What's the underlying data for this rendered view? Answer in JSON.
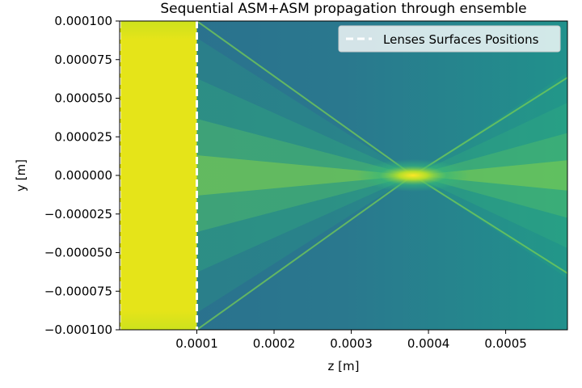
{
  "chart_data": {
    "type": "heatmap",
    "title": "Sequential ASM+ASM propagation through ensemble",
    "xlabel": "z [m]",
    "ylabel": "y [m]",
    "xlim": [
      0,
      0.00058
    ],
    "ylim": [
      -0.0001,
      0.0001
    ],
    "x_ticks": [
      {
        "value": 0.0001,
        "label": "0.0001"
      },
      {
        "value": 0.0002,
        "label": "0.0002"
      },
      {
        "value": 0.0003,
        "label": "0.0003"
      },
      {
        "value": 0.0004,
        "label": "0.0004"
      },
      {
        "value": 0.0005,
        "label": "0.0005"
      }
    ],
    "y_ticks": [
      {
        "value": 0.0001,
        "label": "0.000100"
      },
      {
        "value": 7.5e-05,
        "label": "0.000075"
      },
      {
        "value": 5e-05,
        "label": "0.000050"
      },
      {
        "value": 2.5e-05,
        "label": "0.000025"
      },
      {
        "value": 0,
        "label": "0.000000"
      },
      {
        "value": -2.5e-05,
        "label": "−0.000025"
      },
      {
        "value": -5e-05,
        "label": "−0.000050"
      },
      {
        "value": -7.5e-05,
        "label": "−0.000075"
      },
      {
        "value": -0.0001,
        "label": "−0.000100"
      }
    ],
    "colormap": "viridis",
    "lens_surface_positions": [
      0,
      0.0001
    ],
    "focus": {
      "z": 0.00038,
      "y": 0
    },
    "legend": {
      "placement": "top-right",
      "entries": [
        {
          "label": "Lenses Surfaces Positions",
          "style": "dashed",
          "color": "#ffffff"
        }
      ]
    },
    "grid": false
  }
}
